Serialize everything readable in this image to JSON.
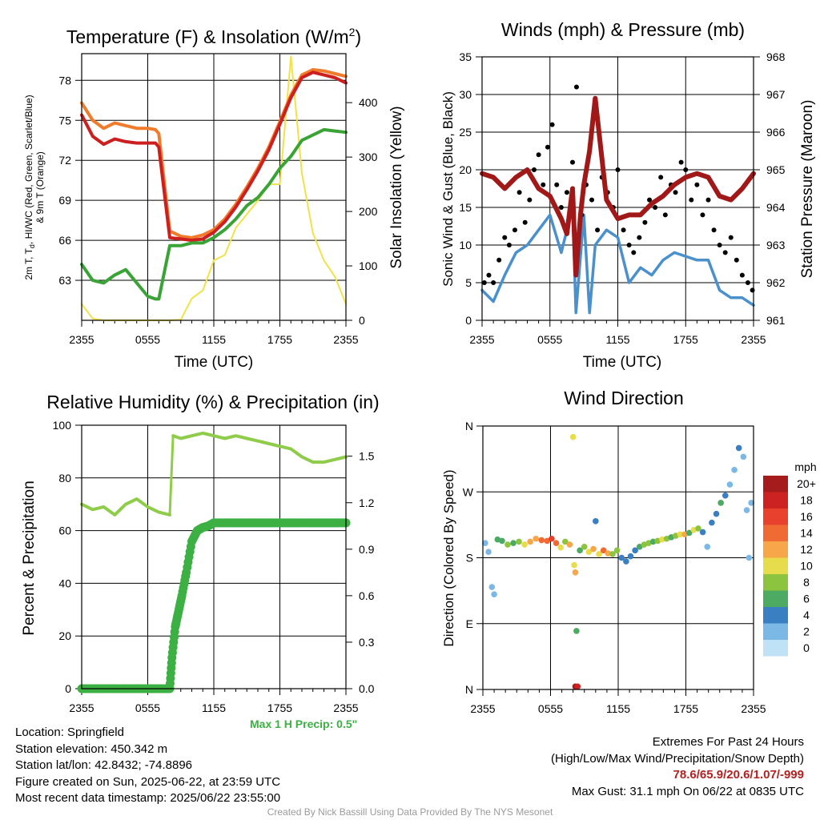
{
  "chart_data": [
    {
      "type": "line",
      "title": "Temperature (F) & Insolation (W/m²)",
      "xlabel": "Time (UTC)",
      "ylabel": "2m T, Td, HI/WC (Red, Green, Scarlet/Blue) & 9m T (Orange)",
      "y2label": "Solar Insolation (Yellow)",
      "x_ticks": [
        "2355",
        "0555",
        "1155",
        "1755",
        "2355"
      ],
      "x": [
        0,
        1,
        2,
        3,
        4,
        5,
        6,
        6.7,
        7,
        8,
        9,
        10,
        11,
        12,
        13,
        14,
        15,
        16,
        17,
        18,
        19,
        20,
        21,
        22,
        23,
        24
      ],
      "ylim": [
        60,
        80
      ],
      "y_ticks": [
        63,
        66,
        69,
        72,
        75,
        78
      ],
      "y2lim": [
        0,
        490
      ],
      "y2_ticks": [
        0,
        100,
        200,
        300,
        400
      ],
      "grid": true,
      "series": [
        {
          "color": "#f07b2a",
          "axis": "left",
          "values": [
            76.3,
            75.0,
            74.4,
            74.8,
            74.6,
            74.4,
            74.4,
            74.3,
            74.0,
            66.7,
            66.3,
            66.2,
            66.4,
            66.8,
            67.6,
            68.7,
            70.0,
            71.4,
            73.0,
            74.9,
            76.9,
            78.4,
            78.8,
            78.7,
            78.5,
            78.3
          ]
        },
        {
          "color": "#cc1f1f",
          "axis": "left",
          "values": [
            75.4,
            73.8,
            73.2,
            73.6,
            73.4,
            73.3,
            73.3,
            73.3,
            73.0,
            66.2,
            66.1,
            66.0,
            66.1,
            66.6,
            67.4,
            68.5,
            69.8,
            71.2,
            72.8,
            74.7,
            76.7,
            78.2,
            78.6,
            78.4,
            78.2,
            77.8
          ]
        },
        {
          "color": "#3aa335",
          "axis": "left",
          "values": [
            64.2,
            63.0,
            62.8,
            63.4,
            63.8,
            62.8,
            61.8,
            61.6,
            61.6,
            65.6,
            65.6,
            65.8,
            65.8,
            66.2,
            66.8,
            67.6,
            68.6,
            69.2,
            70.2,
            71.4,
            72.3,
            73.5,
            73.9,
            74.3,
            74.2,
            74.1
          ]
        },
        {
          "color": "#f2e24a",
          "axis": "right",
          "values": [
            30,
            3,
            0,
            0,
            0,
            0,
            0,
            0,
            0,
            0,
            1,
            40,
            55,
            110,
            120,
            170,
            195,
            220,
            250,
            250,
            485,
            270,
            160,
            110,
            80,
            30
          ]
        }
      ]
    },
    {
      "type": "scatter",
      "title": "Winds (mph) & Pressure (mb)",
      "xlabel": "Time (UTC)",
      "ylabel": "Sonic Wind & Gust (Blue, Black)",
      "y2label": "Station Pressure (Maroon)",
      "x_ticks": [
        "2355",
        "0555",
        "1155",
        "1755",
        "2355"
      ],
      "ylim": [
        0,
        35
      ],
      "y_ticks": [
        0,
        5,
        10,
        15,
        20,
        25,
        30,
        35
      ],
      "y2lim": [
        961,
        968
      ],
      "y2_ticks": [
        961,
        962,
        963,
        964,
        965,
        966,
        967,
        968
      ],
      "grid": true,
      "series": [
        {
          "color": "#4a90cc",
          "style": "line",
          "axis": "left",
          "x": [
            0,
            1,
            2,
            3,
            4,
            5,
            6,
            7,
            8,
            8.3,
            9,
            9.5,
            10,
            11,
            12,
            13,
            14,
            15,
            16,
            17,
            18,
            19,
            20,
            21,
            22,
            23,
            24
          ],
          "values": [
            4,
            2.5,
            6,
            9,
            10,
            12,
            14,
            9,
            15,
            1,
            14,
            1,
            10,
            12,
            11,
            5,
            7,
            6,
            8,
            9,
            8.5,
            8,
            8,
            4,
            3,
            3,
            2
          ]
        },
        {
          "color": "#000000",
          "style": "points",
          "axis": "left",
          "x": [
            0.2,
            0.6,
            1.0,
            1.5,
            2.0,
            2.4,
            2.9,
            3.3,
            3.8,
            4.2,
            4.6,
            5.0,
            5.4,
            5.8,
            6.2,
            6.6,
            7.0,
            7.5,
            8.0,
            8.35,
            8.8,
            9.2,
            9.7,
            10.2,
            10.6,
            11.1,
            11.6,
            12.0,
            12.5,
            13.0,
            13.4,
            13.9,
            14.4,
            14.8,
            15.3,
            15.8,
            16.2,
            16.7,
            17.1,
            17.6,
            18.0,
            18.5,
            19.0,
            19.5,
            20.0,
            20.5,
            21.0,
            21.5,
            22.0,
            22.5,
            23.0,
            23.5,
            23.9
          ],
          "values": [
            5,
            6,
            5,
            8,
            11,
            10,
            12,
            17,
            13,
            16,
            20,
            22,
            18,
            23,
            26,
            18,
            15,
            17,
            21,
            31,
            14,
            18,
            16,
            12,
            19,
            17,
            15,
            20,
            12,
            10,
            9,
            11,
            13,
            16,
            15,
            19,
            14,
            18,
            17,
            21,
            20,
            16,
            18,
            14,
            16,
            12,
            10,
            9,
            11,
            8,
            6,
            5,
            4
          ]
        },
        {
          "color": "#a01818",
          "style": "line",
          "axis": "right",
          "x": [
            0,
            1,
            2,
            3,
            4,
            5,
            6,
            7,
            7.5,
            8,
            8.3,
            8.7,
            9,
            9.5,
            10,
            11,
            12,
            13,
            14,
            15,
            16,
            17,
            18,
            19,
            20,
            21,
            22,
            23,
            24
          ],
          "values": [
            964.9,
            964.8,
            964.5,
            964.8,
            965.0,
            964.5,
            964.3,
            963.7,
            963.3,
            964.5,
            962.2,
            963.8,
            964.6,
            965.5,
            966.9,
            964.2,
            963.7,
            963.8,
            963.8,
            964.1,
            964.3,
            964.6,
            964.8,
            964.9,
            964.8,
            964.3,
            964.2,
            964.5,
            964.9
          ]
        }
      ]
    },
    {
      "type": "line",
      "title": "Relative Humidity (%) & Precipitation (in)",
      "ylabel": "Percent & Precipitation",
      "x_ticks": [
        "2355",
        "0555",
        "1155",
        "1755",
        "2355"
      ],
      "x": [
        0,
        1,
        2,
        3,
        4,
        5,
        6,
        7,
        8,
        8.3,
        9,
        10,
        11,
        12,
        13,
        14,
        15,
        16,
        17,
        18,
        19,
        20,
        21,
        22,
        23,
        24
      ],
      "ylim": [
        0,
        100
      ],
      "y_ticks": [
        0,
        20,
        40,
        60,
        80,
        100
      ],
      "y2lim": [
        0,
        1.7
      ],
      "y2_ticks": [
        0.0,
        0.3,
        0.6,
        0.9,
        1.2,
        1.5
      ],
      "grid": true,
      "series": [
        {
          "color": "#8fcc4a",
          "style": "line",
          "axis": "left",
          "values": [
            70,
            68,
            69,
            66,
            70,
            72,
            69,
            67,
            66,
            96,
            95,
            96,
            97,
            96,
            95,
            96,
            95,
            94,
            93,
            92,
            91,
            88,
            86,
            86,
            87,
            88
          ]
        },
        {
          "color": "#3cb043",
          "style": "points",
          "axis": "right",
          "x": [
            0,
            1,
            2,
            3,
            4,
            5,
            6,
            7,
            8,
            8.2,
            8.5,
            8.8,
            9.1,
            9.5,
            10.0,
            10.5,
            11.0,
            11.5,
            12.0,
            13,
            14,
            15,
            16,
            17,
            18,
            19,
            20,
            21,
            22,
            23,
            24
          ],
          "values": [
            0,
            0,
            0,
            0,
            0,
            0,
            0,
            0,
            0,
            0.2,
            0.4,
            0.5,
            0.6,
            0.75,
            0.95,
            1.02,
            1.04,
            1.05,
            1.07,
            1.07,
            1.07,
            1.07,
            1.07,
            1.07,
            1.07,
            1.07,
            1.07,
            1.07,
            1.07,
            1.07,
            1.07
          ]
        }
      ],
      "annotation": "Max 1 H Precip: 0.5\""
    },
    {
      "type": "scatter",
      "title": "Wind Direction",
      "ylabel": "Direction (Colored By Speed)",
      "x_ticks": [
        "2355",
        "0555",
        "1155",
        "1755",
        "2355"
      ],
      "y_ticks": [
        "N",
        "E",
        "S",
        "W",
        "N"
      ],
      "ylim": [
        0,
        360
      ],
      "grid": true,
      "colorbar": {
        "title": "mph",
        "labels": [
          "20+",
          "18",
          "16",
          "14",
          "12",
          "10",
          "8",
          "6",
          "4",
          "2",
          "0"
        ],
        "colors": [
          "#a61c1c",
          "#cc2222",
          "#e8412e",
          "#f06a33",
          "#f7a64a",
          "#e6dc4c",
          "#8cc43f",
          "#4caa62",
          "#3a7fc2",
          "#7bb8e6",
          "#bfe2f7"
        ]
      },
      "points": [
        {
          "x": 0.2,
          "dir": 200,
          "speed": 2
        },
        {
          "x": 0.5,
          "dir": 188,
          "speed": 1
        },
        {
          "x": 0.8,
          "dir": 140,
          "speed": 2
        },
        {
          "x": 1.0,
          "dir": 130,
          "speed": 2
        },
        {
          "x": 1.3,
          "dir": 205,
          "speed": 5
        },
        {
          "x": 1.7,
          "dir": 203,
          "speed": 6
        },
        {
          "x": 2.2,
          "dir": 198,
          "speed": 7
        },
        {
          "x": 2.7,
          "dir": 200,
          "speed": 6
        },
        {
          "x": 3.2,
          "dir": 202,
          "speed": 8
        },
        {
          "x": 3.7,
          "dir": 198,
          "speed": 10
        },
        {
          "x": 4.2,
          "dir": 202,
          "speed": 12
        },
        {
          "x": 4.7,
          "dir": 206,
          "speed": 12
        },
        {
          "x": 5.2,
          "dir": 204,
          "speed": 14
        },
        {
          "x": 5.7,
          "dir": 203,
          "speed": 14
        },
        {
          "x": 6.1,
          "dir": 206,
          "speed": 16
        },
        {
          "x": 6.5,
          "dir": 200,
          "speed": 14
        },
        {
          "x": 6.9,
          "dir": 194,
          "speed": 10
        },
        {
          "x": 7.3,
          "dir": 202,
          "speed": 8
        },
        {
          "x": 7.7,
          "dir": 198,
          "speed": 12
        },
        {
          "x": 8.0,
          "dir": 345,
          "speed": 10
        },
        {
          "x": 8.1,
          "dir": 170,
          "speed": 10
        },
        {
          "x": 8.2,
          "dir": 160,
          "speed": 12
        },
        {
          "x": 8.3,
          "dir": 80,
          "speed": 6
        },
        {
          "x": 8.2,
          "dir": 4,
          "speed": 20
        },
        {
          "x": 8.4,
          "dir": 4,
          "speed": 18
        },
        {
          "x": 8.6,
          "dir": 190,
          "speed": 6
        },
        {
          "x": 9.0,
          "dir": 195,
          "speed": 8
        },
        {
          "x": 9.4,
          "dir": 188,
          "speed": 10
        },
        {
          "x": 9.8,
          "dir": 192,
          "speed": 12
        },
        {
          "x": 10.0,
          "dir": 230,
          "speed": 4
        },
        {
          "x": 10.3,
          "dir": 185,
          "speed": 10
        },
        {
          "x": 10.7,
          "dir": 190,
          "speed": 14
        },
        {
          "x": 11.1,
          "dir": 186,
          "speed": 12
        },
        {
          "x": 11.5,
          "dir": 185,
          "speed": 8
        },
        {
          "x": 11.9,
          "dir": 190,
          "speed": 8
        },
        {
          "x": 12.3,
          "dir": 180,
          "speed": 4
        },
        {
          "x": 12.7,
          "dir": 175,
          "speed": 4
        },
        {
          "x": 13.1,
          "dir": 182,
          "speed": 4
        },
        {
          "x": 13.5,
          "dir": 190,
          "speed": 4
        },
        {
          "x": 13.9,
          "dir": 195,
          "speed": 6
        },
        {
          "x": 14.3,
          "dir": 198,
          "speed": 8
        },
        {
          "x": 14.7,
          "dir": 200,
          "speed": 8
        },
        {
          "x": 15.1,
          "dir": 202,
          "speed": 6
        },
        {
          "x": 15.5,
          "dir": 203,
          "speed": 8
        },
        {
          "x": 15.9,
          "dir": 205,
          "speed": 10
        },
        {
          "x": 16.3,
          "dir": 206,
          "speed": 8
        },
        {
          "x": 16.7,
          "dir": 208,
          "speed": 6
        },
        {
          "x": 17.1,
          "dir": 210,
          "speed": 8
        },
        {
          "x": 17.5,
          "dir": 212,
          "speed": 10
        },
        {
          "x": 17.9,
          "dir": 212,
          "speed": 12
        },
        {
          "x": 18.3,
          "dir": 214,
          "speed": 6
        },
        {
          "x": 18.7,
          "dir": 218,
          "speed": 10
        },
        {
          "x": 19.1,
          "dir": 220,
          "speed": 8
        },
        {
          "x": 19.5,
          "dir": 215,
          "speed": 4
        },
        {
          "x": 19.9,
          "dir": 195,
          "speed": 2
        },
        {
          "x": 20.3,
          "dir": 228,
          "speed": 4
        },
        {
          "x": 20.7,
          "dir": 240,
          "speed": 4
        },
        {
          "x": 21.1,
          "dir": 255,
          "speed": 6
        },
        {
          "x": 21.5,
          "dir": 265,
          "speed": 4
        },
        {
          "x": 21.9,
          "dir": 280,
          "speed": 2
        },
        {
          "x": 22.3,
          "dir": 300,
          "speed": 2
        },
        {
          "x": 22.7,
          "dir": 330,
          "speed": 4
        },
        {
          "x": 23.1,
          "dir": 318,
          "speed": 2
        },
        {
          "x": 23.4,
          "dir": 245,
          "speed": 2
        },
        {
          "x": 23.6,
          "dir": 180,
          "speed": 2
        },
        {
          "x": 23.8,
          "dir": 255,
          "speed": 2
        }
      ]
    }
  ],
  "info": {
    "location": "Location: Springfield",
    "elevation": "Station elevation: 450.342 m",
    "latlon": "Station lat/lon: 42.8432; -74.8896",
    "created": "Figure created on Sun, 2025-06-22, at 23:59 UTC",
    "recent": "Most recent data timestamp: 2025/06/22 23:55:00"
  },
  "extremes": {
    "title": "Extremes For Past 24 Hours",
    "subtitle": "(High/Low/Max Wind/Precipitation/Snow Depth)",
    "values": "78.6/65.9/20.6/1.07/-999",
    "gust": "Max Gust: 31.1 mph On 06/22 at 0835 UTC"
  },
  "credit": "Created By Nick Bassill Using Data Provided By The NYS Mesonet"
}
